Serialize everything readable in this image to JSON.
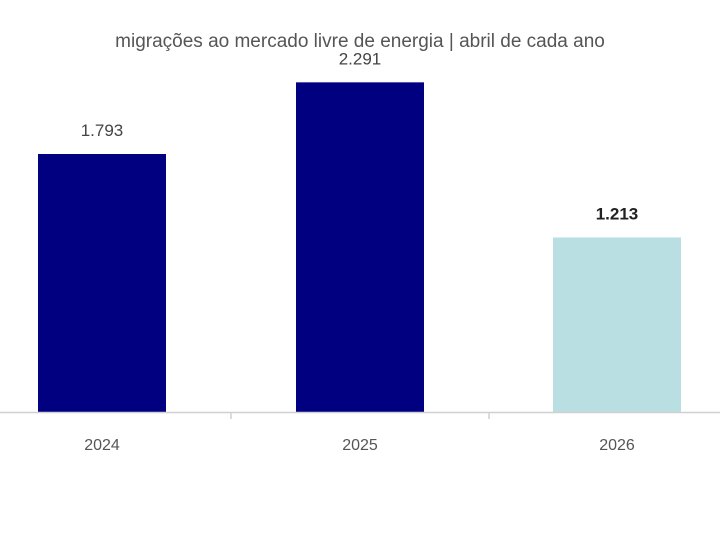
{
  "chart_data": {
    "type": "bar",
    "title": "migrações ao mercado livre de energia | abril de cada ano",
    "xlabel": "",
    "ylabel": "",
    "categories": [
      "2024",
      "2025",
      "2026"
    ],
    "values": [
      1793,
      2291,
      1213
    ],
    "data_labels": [
      "1.793",
      "2.291",
      "1.213"
    ],
    "bold_labels": [
      false,
      false,
      true
    ],
    "ylim": [
      0,
      2600
    ],
    "grid": false,
    "legend": "none",
    "colors": {
      "bars": [
        "#000080",
        "#000080",
        "#b9dfe2"
      ],
      "axis": "#d0d0d0"
    }
  }
}
